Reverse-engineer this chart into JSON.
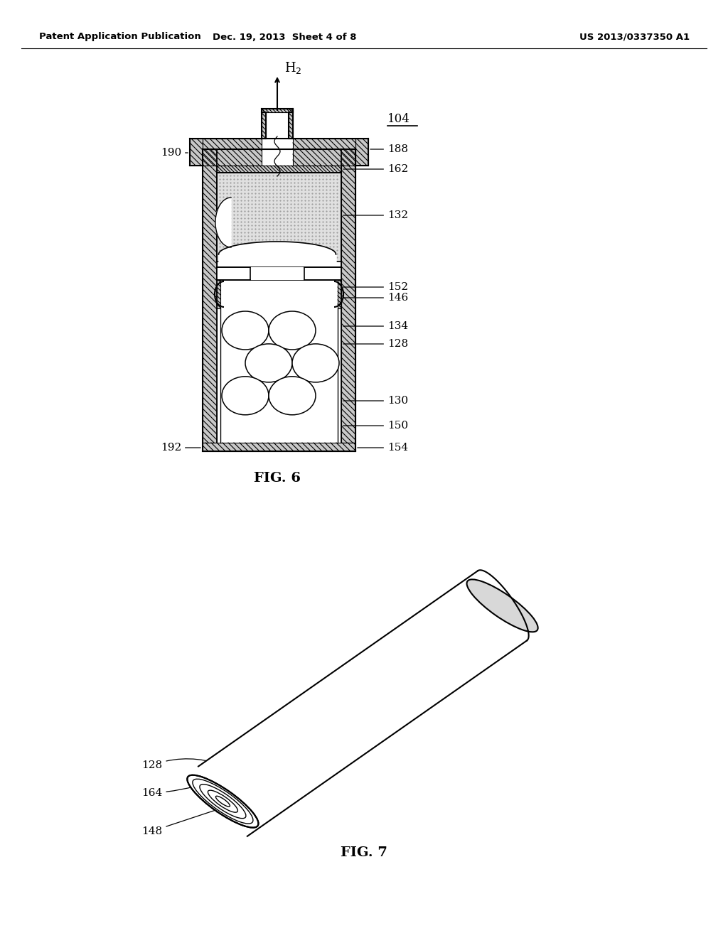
{
  "bg_color": "#ffffff",
  "header_left": "Patent Application Publication",
  "header_center": "Dec. 19, 2013  Sheet 4 of 8",
  "header_right": "US 2013/0337350 A1",
  "fig6_label": "FIG. 6",
  "fig7_label": "FIG. 7",
  "label_104": "104",
  "label_188": "188",
  "label_190": "190",
  "label_162": "162",
  "label_132": "132",
  "label_152": "152",
  "label_146": "146",
  "label_134": "134",
  "label_128": "128",
  "label_130": "130",
  "label_150": "150",
  "label_154": "154",
  "label_192": "192",
  "label_h2": "H$_2$",
  "label_128b": "128",
  "label_164": "164",
  "label_148": "148",
  "hatch_color": "#000000",
  "hatch_bg": "#c8c8c8",
  "stipple_color": "#d8d8d8"
}
